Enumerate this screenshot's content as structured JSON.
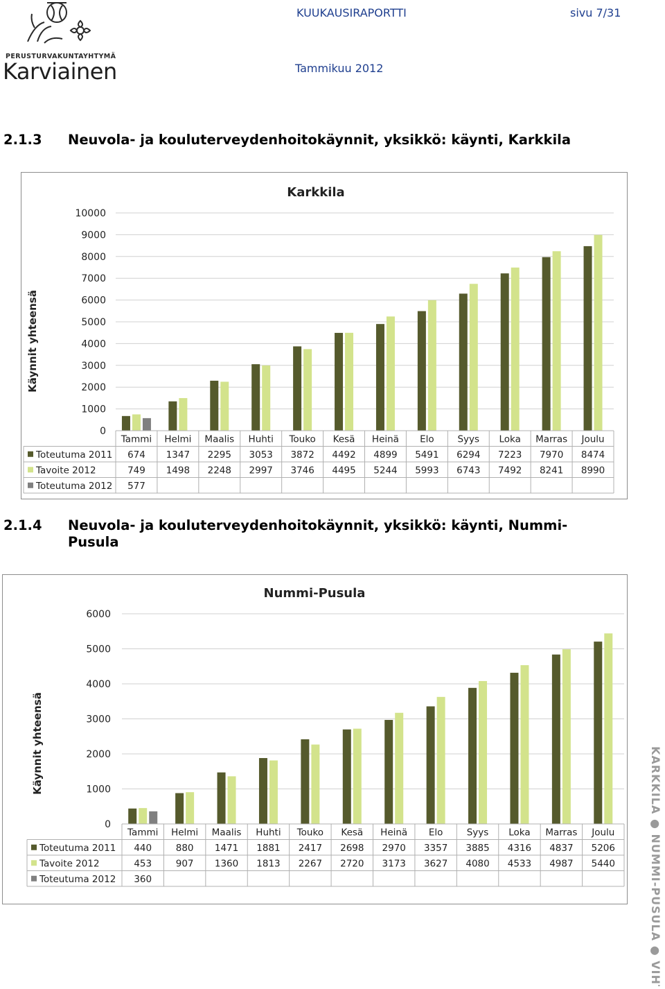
{
  "header": {
    "brand_small": "PERUSTURVAKUNTAYHTYMÄ",
    "brand_name": "Karviainen",
    "report_title": "KUUKAUSIRAPORTTI",
    "page": "sivu 7/31",
    "month": "Tammikuu 2012"
  },
  "sections": [
    {
      "number": "2.1.3",
      "title": "Neuvola- ja kouluterveydenhoitokäynnit, yksikkö: käynti, Karkkila",
      "title_line2": ""
    },
    {
      "number": "2.1.4",
      "title": "Neuvola- ja kouluterveydenhoitokäynnit, yksikkö: käynti, Nummi-",
      "title_line2": "Pusula"
    }
  ],
  "side_text": "KARKKILA ● NUMMI-PUSULA ● VIHTI",
  "colors": {
    "toteutuma_2011": "#555a2c",
    "tavoite_2012": "#d3e38c",
    "toteutuma_2012": "#808080"
  },
  "chart_data": [
    {
      "type": "bar",
      "title": "Karkkila",
      "ylabel": "Käynnit yhteensä",
      "xlabel": "",
      "ylim": [
        0,
        10000
      ],
      "yticks": [
        0,
        1000,
        2000,
        3000,
        4000,
        5000,
        6000,
        7000,
        8000,
        9000,
        10000
      ],
      "grid": true,
      "legend": "data-table",
      "categories": [
        "Tammi",
        "Helmi",
        "Maalis",
        "Huhti",
        "Touko",
        "Kesä",
        "Heinä",
        "Elo",
        "Syys",
        "Loka",
        "Marras",
        "Joulu"
      ],
      "series": [
        {
          "name": "Toteutuma 2011",
          "color": "#555a2c",
          "values": [
            674,
            1347,
            2295,
            3053,
            3872,
            4492,
            4899,
            5491,
            6294,
            7223,
            7970,
            8474
          ]
        },
        {
          "name": "Tavoite 2012",
          "color": "#d3e38c",
          "values": [
            749,
            1498,
            2248,
            2997,
            3746,
            4495,
            5244,
            5993,
            6743,
            7492,
            8241,
            8990
          ]
        },
        {
          "name": "Toteutuma 2012",
          "color": "#808080",
          "values": [
            577,
            null,
            null,
            null,
            null,
            null,
            null,
            null,
            null,
            null,
            null,
            null
          ]
        }
      ]
    },
    {
      "type": "bar",
      "title": "Nummi-Pusula",
      "ylabel": "Käynnit yhteensä",
      "xlabel": "",
      "ylim": [
        0,
        6000
      ],
      "yticks": [
        0,
        1000,
        2000,
        3000,
        4000,
        5000,
        6000
      ],
      "grid": true,
      "legend": "data-table",
      "categories": [
        "Tammi",
        "Helmi",
        "Maalis",
        "Huhti",
        "Touko",
        "Kesä",
        "Heinä",
        "Elo",
        "Syys",
        "Loka",
        "Marras",
        "Joulu"
      ],
      "series": [
        {
          "name": "Toteutuma 2011",
          "color": "#555a2c",
          "values": [
            440,
            880,
            1471,
            1881,
            2417,
            2698,
            2970,
            3357,
            3885,
            4316,
            4837,
            5206
          ]
        },
        {
          "name": "Tavoite 2012",
          "color": "#d3e38c",
          "values": [
            453,
            907,
            1360,
            1813,
            2267,
            2720,
            3173,
            3627,
            4080,
            4533,
            4987,
            5440
          ]
        },
        {
          "name": "Toteutuma 2012",
          "color": "#808080",
          "values": [
            360,
            null,
            null,
            null,
            null,
            null,
            null,
            null,
            null,
            null,
            null,
            null
          ]
        }
      ]
    }
  ]
}
